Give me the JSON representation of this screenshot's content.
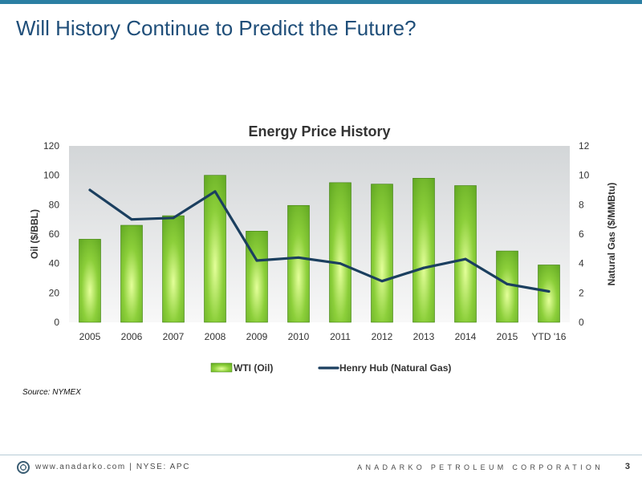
{
  "slide": {
    "title": "Will History Continue to Predict the Future?",
    "source": "Source: NYMEX",
    "footer_left": "www.anadarko.com | NYSE: APC",
    "footer_right": "ANADARKO PETROLEUM CORPORATION",
    "page_number": "3"
  },
  "colors": {
    "accent": "#2b7fa3",
    "title": "#1f4e79",
    "bar": "#5aa11e",
    "bar_highlight": "#e4ff9a",
    "line": "#1b3f5f"
  },
  "chart_data": {
    "type": "bar",
    "title": "Energy Price History",
    "categories": [
      "2005",
      "2006",
      "2007",
      "2008",
      "2009",
      "2010",
      "2011",
      "2012",
      "2013",
      "2014",
      "2015",
      "YTD '16"
    ],
    "ylabel": "Oil ($/BBL)",
    "ylabel_right": "Natural Gas ($/MMBtu)",
    "ylim": [
      0,
      120
    ],
    "ylim_right": [
      0,
      12
    ],
    "yticks": [
      0,
      20,
      40,
      60,
      80,
      100,
      120
    ],
    "yticks_right": [
      0,
      2,
      4,
      6,
      8,
      10,
      12
    ],
    "grid": false,
    "legend_position": "bottom",
    "series": [
      {
        "name": "WTI (Oil)",
        "type": "bar",
        "axis": "left",
        "values": [
          56.5,
          66,
          72.5,
          100,
          62,
          79.5,
          95,
          94,
          98,
          93,
          48.5,
          39
        ]
      },
      {
        "name": "Henry Hub (Natural Gas)",
        "type": "line",
        "axis": "right",
        "values": [
          9.0,
          7.0,
          7.1,
          8.9,
          4.2,
          4.4,
          4.0,
          2.8,
          3.7,
          4.3,
          2.6,
          2.1
        ]
      }
    ]
  }
}
